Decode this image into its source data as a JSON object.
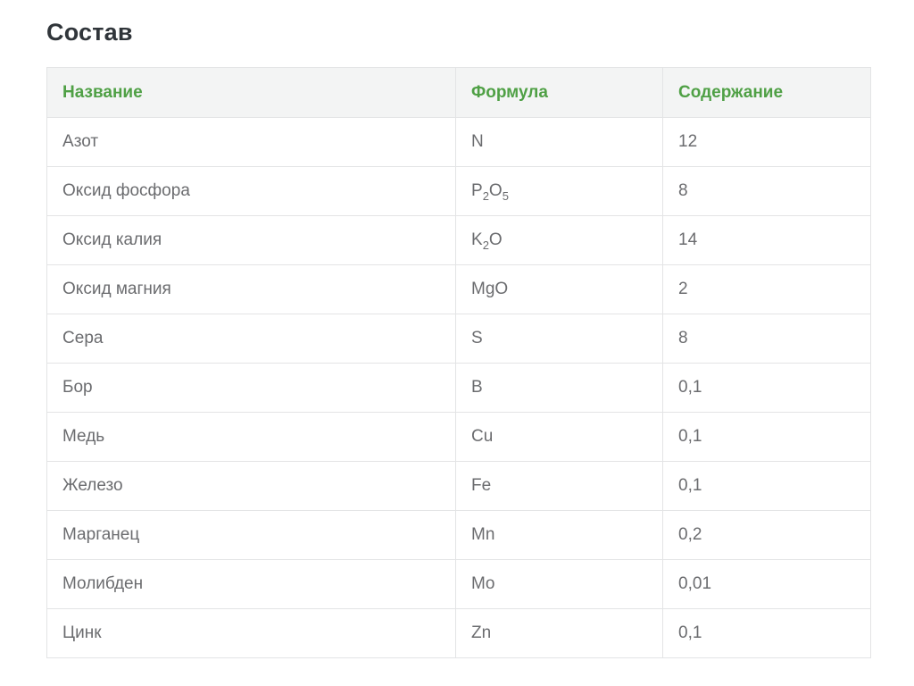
{
  "page": {
    "title": "Состав"
  },
  "table": {
    "headers": [
      "Название",
      "Формула",
      "Содержание"
    ],
    "rows": [
      {
        "name": "Азот",
        "formula": "N",
        "content": "12"
      },
      {
        "name": "Оксид фосфора",
        "formula": "P₂O₅",
        "content": "8"
      },
      {
        "name": "Оксид калия",
        "formula": "K₂O",
        "content": "14"
      },
      {
        "name": "Оксид магния",
        "formula": "MgO",
        "content": "2"
      },
      {
        "name": "Сера",
        "formula": "S",
        "content": "8"
      },
      {
        "name": "Бор",
        "formula": "B",
        "content": "0,1"
      },
      {
        "name": "Медь",
        "formula": "Cu",
        "content": "0,1"
      },
      {
        "name": "Железо",
        "formula": "Fe",
        "content": "0,1"
      },
      {
        "name": "Марганец",
        "formula": "Mn",
        "content": "0,2"
      },
      {
        "name": "Молибден",
        "formula": "Mo",
        "content": "0,01"
      },
      {
        "name": "Цинк",
        "formula": "Zn",
        "content": "0,1"
      }
    ],
    "colors": {
      "header_text": "#4fa045",
      "header_bg": "#f3f4f4",
      "body_text": "#6b6c6f",
      "border": "#e3e4e5",
      "title_text": "#30353a"
    }
  }
}
